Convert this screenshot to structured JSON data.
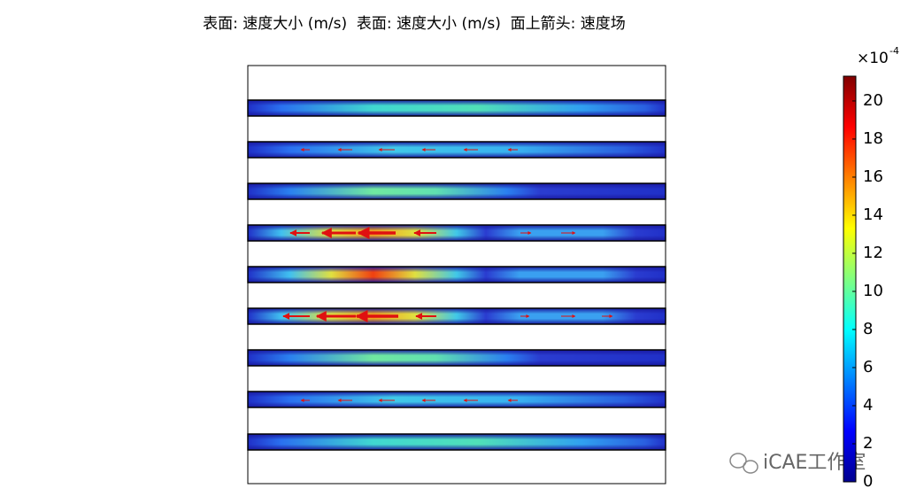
{
  "chart_data": {
    "type": "surface",
    "title": "表面: 速度大小 (m/s)  表面: 速度大小 (m/s)  面上箭头: 速度场",
    "colorbar": {
      "scale_base": "×10",
      "scale_exponent": "-4",
      "lim": [
        0,
        21.3
      ],
      "ticks": [
        0,
        2,
        4,
        6,
        8,
        10,
        12,
        14,
        16,
        18,
        20
      ],
      "colormap": [
        "#00008f",
        "#0000ff",
        "#0080ff",
        "#00ffff",
        "#80ff80",
        "#ffff00",
        "#ff8000",
        "#ff0000",
        "#800000"
      ]
    },
    "watermark": "iCAE工作室"
  }
}
